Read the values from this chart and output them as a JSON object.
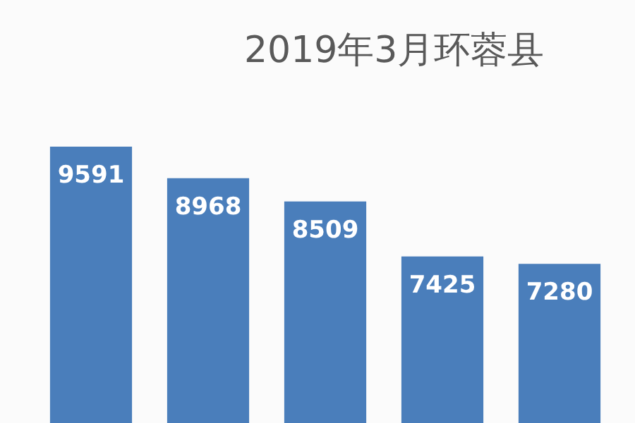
{
  "chart_data": {
    "type": "bar",
    "title": "2019年3月环蓉县",
    "categories": [
      null,
      null,
      null,
      null,
      null
    ],
    "values": [
      9591,
      8968,
      8509,
      7425,
      7280
    ],
    "color": "#4a7ebb",
    "data_labels": true
  }
}
